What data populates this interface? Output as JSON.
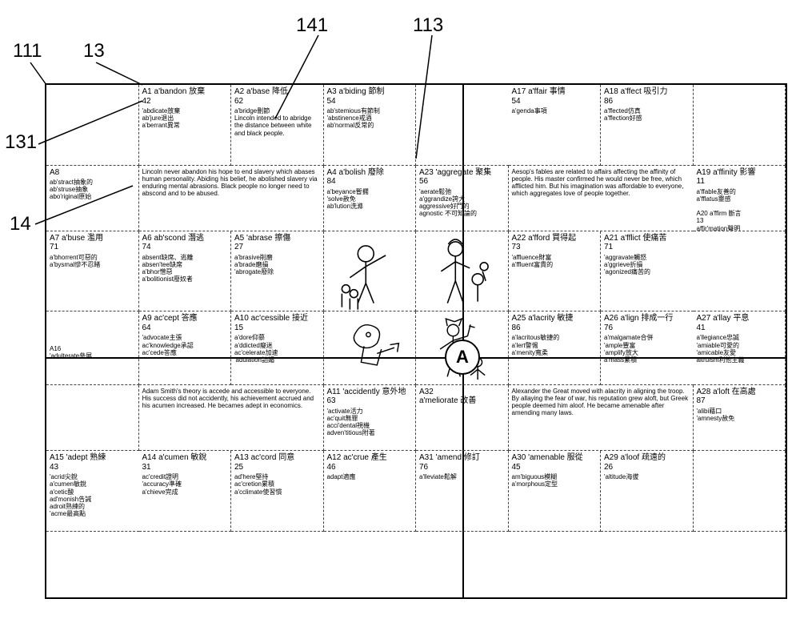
{
  "labels": {
    "l111": "111",
    "l13": "13",
    "l141": "141",
    "l113": "113",
    "l131": "131",
    "l14": "14"
  },
  "center_letter": "A",
  "grid": {
    "colors": {
      "border": "#000000",
      "dash": "#444444",
      "bg": "#ffffff"
    },
    "columns": 8,
    "rows": 7,
    "header_fontsize_pt": 8,
    "sub_fontsize_pt": 6
  },
  "cells": [
    [
      {
        "hdr": "",
        "sub": ""
      },
      {
        "hdr": "A1 a'bandon 放棄\n42",
        "sub": "'abdicate放棄\nab'jure退出\na'berrant異常"
      },
      {
        "hdr": "A2 a'base 降低\n62",
        "sub": "a'bridge刪節\nLincoln intended to abridge the distance between white and black people."
      },
      {
        "hdr": "A3 a'biding 節制\n54",
        "sub": "ab'stemious有節制\n'abstinence戒酒\nab'normal反常的"
      },
      {
        "hdr": "",
        "sub": ""
      },
      {
        "hdr": "A17 a'ffair 事情\n54",
        "sub": "a'genda事項"
      },
      {
        "hdr": "A18 a'ffect 吸引力\n86",
        "sub": "a'ffected仿真\na'ffection好感"
      },
      {
        "hdr": "",
        "sub": ""
      }
    ],
    [
      {
        "hdr": "A8",
        "sub": "ab'stract抽象的\nab'struse抽象\nabo'riginal原始"
      },
      {
        "para": "Lincoln never abandon his hope to end slavery which abases human personality. Abiding his belief, he abolished slavery via enduring mental abrasions. Black people no longer need to abscond and to be abused.",
        "span": 2
      },
      {
        "skip": true
      },
      {
        "hdr": "A4 a'bolish 廢除\n84",
        "sub": "a'beyance暫擱\n'solve赦免\nab'lution洗滌"
      },
      {
        "hdr": "A23 'aggregate 聚集\n56",
        "sub": "'aerate鬆弛\na'ggrandize誇大\naggressive好鬥的\nagnostic 不可知論的"
      },
      {
        "para": "Aesop's fables are related to affairs affecting the affinity of people. His master confirmed he would never be free, which afflicted him. But his imagination was affordable to everyone, which aggregates love of people together.",
        "span": 2
      },
      {
        "skip": true
      },
      {
        "hdr": "A19 a'ffinity 影響\n11",
        "sub": "a'ffable友善的\na'fflatus靈感\n\nA20 a'ffirm 斷言\n13\naffir'mation聲明\na'ffray爭吵\na'ffront對責"
      }
    ],
    [
      {
        "hdr": "A7 a'buse 濫用\n71",
        "sub": "a'bhorrent可惡的\na'bysmal慘不忍睹"
      },
      {
        "hdr": "A6 ab'scond 潛逃\n74",
        "sub": "absent缺席、逃離\nabsen'tee缺席\na'bhor憎惡\na'bolitionist廢奴者"
      },
      {
        "hdr": "A5 'abrase 擦傷\n27",
        "sub": "a'brasive削磨\na'brade磨損\n'abrogate廢除"
      },
      {
        "illus": "lincoln",
        "span": 1
      },
      {
        "illus": "aesop",
        "span": 1
      },
      {
        "hdr": "A22 a'fford 買得起\n73",
        "sub": "'affluence財富\na'ffluent富貴的"
      },
      {
        "hdr": "A21 a'fflict 使痛苦\n71",
        "sub": "'aggravate觸怒\na'ggrieve折損\n'agonized痛苦的"
      },
      {
        "hdr": "",
        "sub": ""
      }
    ],
    [
      {
        "hdr": "",
        "sub": "\n\n\n\nA16\n'adulterate參展"
      },
      {
        "hdr": "A9 ac'cept 答應\n64",
        "sub": "'advocate主張\nac'knowledge承認\nac'cede答應"
      },
      {
        "hdr": "A10 ac'cessible 接近\n15",
        "sub": "a'dore仰慕\na'ddicted癡迷\nac'celerate加速\n'adulation諂媚"
      },
      {
        "illus": "smith",
        "span": 1
      },
      {
        "illus": "alexander",
        "span": 1
      },
      {
        "hdr": "A25 a'lacrity 敏捷\n86",
        "sub": "a'lacritous敏捷的\na'lert警惕\na'menity寬柔"
      },
      {
        "hdr": "A26 a'lign 排成一行\n76",
        "sub": "a'malgamate合併\n'ample豐富\n'amplify放大\na'mass累積"
      },
      {
        "hdr": "A27 a'llay 平息\n41",
        "sub": "a'llegiance忠誠\n'amiable可愛的\n'amicable友愛\naltruism利他主義"
      }
    ],
    [
      {
        "hdr": "",
        "sub": ""
      },
      {
        "para": "Adam Smith's theory is accede and accessible to everyone. His success did not accidently, his achievement accrued and his acumen increased. He becames adept in economics.",
        "span": 2
      },
      {
        "skip": true
      },
      {
        "hdr": "A11 'accidently 意外地\n63",
        "sub": "'activate活力\nac'quit無罪\nacci'dental視機\nadven'titious附著"
      },
      {
        "hdr": "A32\na'meliorate 改善",
        "sub": ""
      },
      {
        "para": "Alexander the Great moved with alacrity in aligning the troop. By allaying the fear of war, his reputation grew aloft, but Greek people deemed him aloof. He became amenable after amending many laws.",
        "span": 2
      },
      {
        "skip": true
      },
      {
        "hdr": "A28 a'loft 在高處\n87",
        "sub": "'alibi藉口\n'amnesty赦免"
      }
    ],
    [
      {
        "hdr": "A15 'adept 熟練\n43",
        "sub": "'acrid尖銳\na'cumen敏銳\na'cetic酸\nad'monish告誡\nadroit熟練的\n'acme最高點"
      },
      {
        "hdr": "A14 a'cumen 敏銳\n31",
        "sub": "ac'credit證明\n'accuracy準確\na'chieve完成"
      },
      {
        "hdr": "A13 ac'cord 同意\n25",
        "sub": "ad'here堅持\nac'cretion累積\na'cclimate使習慣"
      },
      {
        "hdr": "A12 ac'crue 產生\n46",
        "sub": "adapt適應"
      },
      {
        "hdr": "A31 'amend 修訂\n76",
        "sub": "a'lleviate鬆解"
      },
      {
        "hdr": "A30 'amenable 服從\n45",
        "sub": "am'biguous模糊\na'morphous定型"
      },
      {
        "hdr": "A29 a'loof 疏遠的\n26",
        "sub": "'altitude海拔"
      },
      {
        "hdr": "",
        "sub": ""
      }
    ]
  ]
}
